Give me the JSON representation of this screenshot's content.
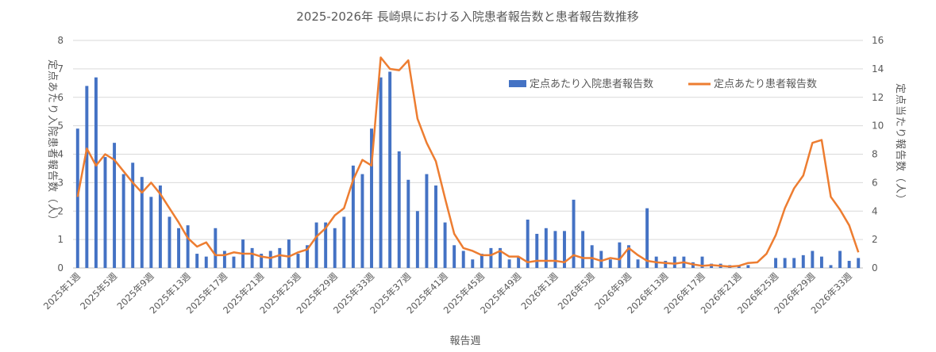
{
  "chart_data": {
    "type": "bar+line",
    "title": "2025-2026年 長崎県における入院患者報告数と患者報告数推移",
    "xlabel": "報告週",
    "ylabel_left": "定点あたり入院患者報告数（人）",
    "ylabel_right": "定点当たり報告数（人）",
    "y_left_lim": [
      0,
      8
    ],
    "y_left_ticks": [
      0,
      1,
      2,
      3,
      4,
      5,
      6,
      7,
      8
    ],
    "y_right_lim": [
      0,
      16
    ],
    "y_right_ticks": [
      0,
      2,
      4,
      6,
      8,
      10,
      12,
      14,
      16
    ],
    "grid": true,
    "legend_position": "top-right",
    "x_tick_labels": [
      "2025年1週",
      "2025年5週",
      "2025年9週",
      "2025年13週",
      "2025年17週",
      "2025年21週",
      "2025年25週",
      "2025年29週",
      "2025年33週",
      "2025年37週",
      "2025年41週",
      "2025年45週",
      "2025年49週",
      "2026年1週",
      "2026年5週",
      "2026年9週",
      "2026年13週",
      "2026年17週",
      "2026年21週",
      "2026年25週",
      "2026年29週",
      "2026年33週"
    ],
    "x_tick_every": 4,
    "series": [
      {
        "name": "定点あたり入院患者報告数",
        "type": "bar",
        "axis": "left",
        "color": "#4472C4",
        "values": [
          4.9,
          6.4,
          6.7,
          3.9,
          4.4,
          3.3,
          3.7,
          3.2,
          2.5,
          2.9,
          1.8,
          1.4,
          1.5,
          0.5,
          0.4,
          1.4,
          0.6,
          0.4,
          1.0,
          0.7,
          0.5,
          0.6,
          0.7,
          1.0,
          0.5,
          0.8,
          1.6,
          1.6,
          1.4,
          1.8,
          3.6,
          3.3,
          4.9,
          6.7,
          6.9,
          4.1,
          3.1,
          2.0,
          3.3,
          2.9,
          1.6,
          0.8,
          0.6,
          0.3,
          0.5,
          0.7,
          0.7,
          0.3,
          0.4,
          1.7,
          1.2,
          1.4,
          1.3,
          1.3,
          2.4,
          1.3,
          0.8,
          0.6,
          0.3,
          0.9,
          0.8,
          0.3,
          2.1,
          0.4,
          0.25,
          0.4,
          0.4,
          0.2,
          0.4,
          0.15,
          0.15,
          0.1,
          0.1,
          0.1,
          0.0,
          0.0,
          0.35,
          0.35,
          0.35,
          0.45,
          0.6,
          0.4,
          0.1,
          0.6,
          0.25,
          0.35
        ]
      },
      {
        "name": "定点あたり患者報告数",
        "type": "line",
        "axis": "right",
        "color": "#ED7D31",
        "values": [
          5.0,
          8.4,
          7.2,
          8.0,
          7.6,
          6.8,
          6.0,
          5.3,
          6.0,
          5.2,
          4.2,
          3.2,
          2.1,
          1.5,
          1.8,
          0.9,
          0.9,
          1.1,
          1.0,
          1.0,
          0.8,
          0.7,
          0.9,
          0.8,
          1.1,
          1.3,
          2.2,
          2.8,
          3.7,
          4.2,
          6.2,
          7.6,
          7.2,
          14.8,
          14.0,
          13.9,
          14.6,
          10.5,
          8.8,
          7.5,
          4.9,
          2.4,
          1.4,
          1.2,
          0.9,
          0.9,
          1.2,
          0.8,
          0.8,
          0.4,
          0.5,
          0.5,
          0.5,
          0.4,
          0.9,
          0.7,
          0.7,
          0.5,
          0.7,
          0.6,
          1.4,
          0.9,
          0.5,
          0.4,
          0.35,
          0.3,
          0.4,
          0.25,
          0.15,
          0.2,
          0.15,
          0.1,
          0.15,
          0.35,
          0.4,
          1.0,
          2.3,
          4.2,
          5.6,
          6.5,
          8.8,
          9.0,
          5.0,
          4.1,
          3.0,
          1.1
        ]
      }
    ]
  }
}
